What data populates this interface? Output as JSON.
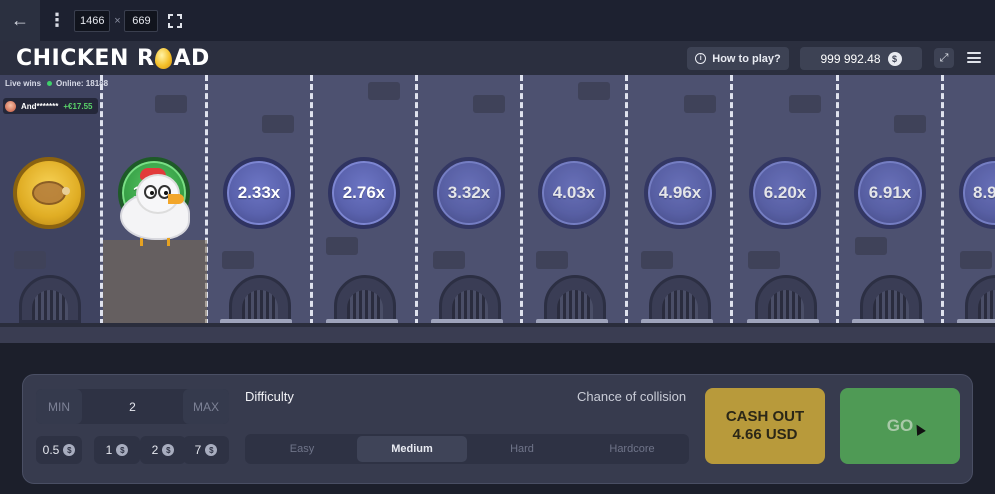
{
  "topbar": {
    "back_icon": "arrow-left-icon",
    "menu_icon": "vertical-dots-icon",
    "width": "1466",
    "separator": "×",
    "height": "669",
    "fullscreen_icon": "fullscreen-icon"
  },
  "header": {
    "logo_left": "CHICKEN R",
    "logo_right": "AD",
    "how_to_play": "How to play?",
    "balance": "999 992.48",
    "currency_symbol": "$"
  },
  "live": {
    "title": "Live wins",
    "online_label": "Online: 18188",
    "last_win_user": "And*******",
    "last_win_amount": "+€17.55"
  },
  "lanes": {
    "multipliers": [
      "1.98x",
      "2.33x",
      "2.76x",
      "3.32x",
      "4.03x",
      "4.96x",
      "6.20x",
      "6.91x",
      "8.9"
    ],
    "current_index": 0,
    "start_icon": "roast-chicken-icon"
  },
  "controls": {
    "min_label": "MIN",
    "bet_value": "2",
    "max_label": "MAX",
    "chips": [
      "0.5",
      "1",
      "2",
      "7"
    ],
    "chip_currency": "$",
    "difficulty_label": "Difficulty",
    "collision_label": "Chance of collision",
    "difficulties": [
      "Easy",
      "Medium",
      "Hard",
      "Hardcore"
    ],
    "selected_difficulty": "Medium",
    "cashout_line1": "CASH OUT",
    "cashout_line2": "4.66 USD",
    "go_label": "GO"
  },
  "colors": {
    "accent_green": "#3aa449",
    "gold": "#e0ad24",
    "lane_blue": "#5a62ad",
    "cashout": "#b89a3b",
    "go": "#4f9a55"
  }
}
